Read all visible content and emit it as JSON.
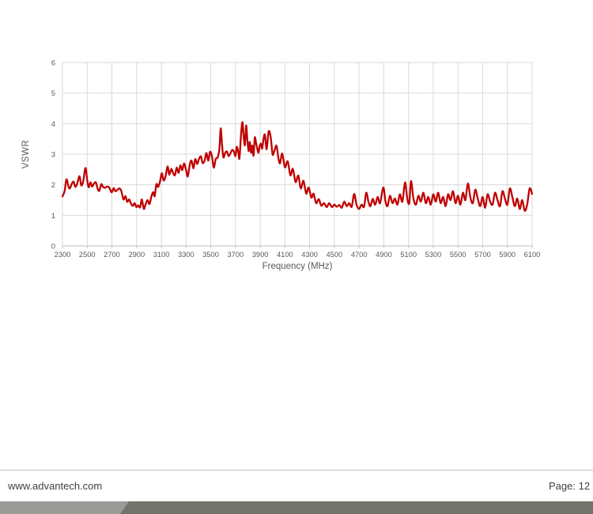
{
  "footer": {
    "website": "www.advantech.com",
    "page_label": "Page: 12"
  },
  "colors": {
    "gridline": "#d9d9d9",
    "axis_line": "#bfbfbf",
    "tick_label": "#595959",
    "bar_light": "#9b9b97",
    "bar_dark": "#73736d"
  },
  "chart_data": {
    "type": "line",
    "title": "",
    "xlabel": "Frequency (MHz)",
    "ylabel": "VSWR",
    "x_range": [
      2300,
      6100
    ],
    "y_range": [
      0,
      6
    ],
    "x_ticks": [
      2300,
      2500,
      2700,
      2900,
      3100,
      3300,
      3500,
      3700,
      3900,
      4100,
      4300,
      4500,
      4700,
      4900,
      5100,
      5300,
      5500,
      5700,
      5900,
      6100
    ],
    "y_ticks": [
      0,
      1,
      2,
      3,
      4,
      5,
      6
    ],
    "grid": true,
    "legend": "none",
    "line_color": "#c00000",
    "series": [
      {
        "name": "VSWR",
        "points": [
          [
            2300,
            1.62
          ],
          [
            2318,
            1.8
          ],
          [
            2332,
            2.18
          ],
          [
            2348,
            1.95
          ],
          [
            2360,
            1.88
          ],
          [
            2374,
            2.02
          ],
          [
            2390,
            2.1
          ],
          [
            2404,
            1.93
          ],
          [
            2420,
            2.05
          ],
          [
            2438,
            2.28
          ],
          [
            2452,
            1.98
          ],
          [
            2468,
            2.12
          ],
          [
            2486,
            2.55
          ],
          [
            2500,
            2.15
          ],
          [
            2512,
            1.92
          ],
          [
            2526,
            2.08
          ],
          [
            2540,
            1.94
          ],
          [
            2554,
            2.03
          ],
          [
            2570,
            2.08
          ],
          [
            2584,
            1.88
          ],
          [
            2598,
            1.8
          ],
          [
            2614,
            2.02
          ],
          [
            2628,
            1.93
          ],
          [
            2644,
            1.9
          ],
          [
            2660,
            1.94
          ],
          [
            2678,
            1.91
          ],
          [
            2698,
            1.75
          ],
          [
            2714,
            1.89
          ],
          [
            2728,
            1.79
          ],
          [
            2744,
            1.83
          ],
          [
            2760,
            1.88
          ],
          [
            2776,
            1.8
          ],
          [
            2794,
            1.52
          ],
          [
            2810,
            1.63
          ],
          [
            2824,
            1.44
          ],
          [
            2840,
            1.52
          ],
          [
            2856,
            1.37
          ],
          [
            2870,
            1.31
          ],
          [
            2884,
            1.4
          ],
          [
            2898,
            1.27
          ],
          [
            2912,
            1.33
          ],
          [
            2928,
            1.26
          ],
          [
            2942,
            1.52
          ],
          [
            2958,
            1.21
          ],
          [
            2972,
            1.35
          ],
          [
            2988,
            1.5
          ],
          [
            3004,
            1.37
          ],
          [
            3020,
            1.62
          ],
          [
            3034,
            1.76
          ],
          [
            3046,
            1.63
          ],
          [
            3060,
            2.02
          ],
          [
            3074,
            1.93
          ],
          [
            3090,
            2.12
          ],
          [
            3104,
            2.38
          ],
          [
            3118,
            2.14
          ],
          [
            3134,
            2.28
          ],
          [
            3150,
            2.6
          ],
          [
            3164,
            2.33
          ],
          [
            3180,
            2.52
          ],
          [
            3194,
            2.4
          ],
          [
            3210,
            2.31
          ],
          [
            3224,
            2.56
          ],
          [
            3240,
            2.39
          ],
          [
            3254,
            2.63
          ],
          [
            3270,
            2.48
          ],
          [
            3284,
            2.7
          ],
          [
            3300,
            2.49
          ],
          [
            3314,
            2.27
          ],
          [
            3330,
            2.66
          ],
          [
            3344,
            2.79
          ],
          [
            3360,
            2.54
          ],
          [
            3374,
            2.84
          ],
          [
            3390,
            2.68
          ],
          [
            3404,
            2.84
          ],
          [
            3420,
            2.93
          ],
          [
            3434,
            2.71
          ],
          [
            3450,
            2.79
          ],
          [
            3464,
            3.04
          ],
          [
            3480,
            2.79
          ],
          [
            3494,
            3.08
          ],
          [
            3510,
            2.93
          ],
          [
            3524,
            2.56
          ],
          [
            3540,
            2.84
          ],
          [
            3556,
            2.9
          ],
          [
            3570,
            3.18
          ],
          [
            3580,
            3.84
          ],
          [
            3590,
            3.38
          ],
          [
            3602,
            2.9
          ],
          [
            3616,
            3.04
          ],
          [
            3630,
            3.09
          ],
          [
            3644,
            2.94
          ],
          [
            3660,
            3.04
          ],
          [
            3674,
            3.14
          ],
          [
            3688,
            3.08
          ],
          [
            3700,
            2.94
          ],
          [
            3710,
            3.24
          ],
          [
            3722,
            3.08
          ],
          [
            3732,
            2.86
          ],
          [
            3744,
            3.58
          ],
          [
            3756,
            4.05
          ],
          [
            3766,
            3.58
          ],
          [
            3776,
            3.3
          ],
          [
            3786,
            3.94
          ],
          [
            3796,
            3.48
          ],
          [
            3806,
            3.1
          ],
          [
            3816,
            3.4
          ],
          [
            3826,
            3.05
          ],
          [
            3836,
            3.28
          ],
          [
            3846,
            2.95
          ],
          [
            3856,
            3.54
          ],
          [
            3866,
            3.38
          ],
          [
            3876,
            3.18
          ],
          [
            3886,
            3.05
          ],
          [
            3896,
            3.28
          ],
          [
            3906,
            3.34
          ],
          [
            3916,
            3.18
          ],
          [
            3926,
            3.48
          ],
          [
            3938,
            3.64
          ],
          [
            3952,
            3.16
          ],
          [
            3968,
            3.74
          ],
          [
            3984,
            3.58
          ],
          [
            4000,
            3.0
          ],
          [
            4014,
            3.1
          ],
          [
            4032,
            3.28
          ],
          [
            4046,
            2.9
          ],
          [
            4060,
            2.7
          ],
          [
            4078,
            3.02
          ],
          [
            4100,
            2.57
          ],
          [
            4122,
            2.77
          ],
          [
            4144,
            2.31
          ],
          [
            4164,
            2.52
          ],
          [
            4186,
            2.09
          ],
          [
            4208,
            2.3
          ],
          [
            4228,
            1.88
          ],
          [
            4250,
            2.13
          ],
          [
            4272,
            1.71
          ],
          [
            4292,
            1.91
          ],
          [
            4314,
            1.58
          ],
          [
            4332,
            1.71
          ],
          [
            4352,
            1.4
          ],
          [
            4374,
            1.53
          ],
          [
            4394,
            1.32
          ],
          [
            4416,
            1.4
          ],
          [
            4438,
            1.27
          ],
          [
            4458,
            1.4
          ],
          [
            4480,
            1.27
          ],
          [
            4500,
            1.35
          ],
          [
            4520,
            1.28
          ],
          [
            4540,
            1.34
          ],
          [
            4560,
            1.25
          ],
          [
            4580,
            1.45
          ],
          [
            4600,
            1.3
          ],
          [
            4620,
            1.4
          ],
          [
            4640,
            1.28
          ],
          [
            4660,
            1.7
          ],
          [
            4680,
            1.34
          ],
          [
            4700,
            1.21
          ],
          [
            4720,
            1.35
          ],
          [
            4740,
            1.28
          ],
          [
            4758,
            1.74
          ],
          [
            4776,
            1.44
          ],
          [
            4792,
            1.3
          ],
          [
            4810,
            1.54
          ],
          [
            4830,
            1.35
          ],
          [
            4850,
            1.6
          ],
          [
            4870,
            1.4
          ],
          [
            4896,
            1.91
          ],
          [
            4914,
            1.45
          ],
          [
            4930,
            1.3
          ],
          [
            4950,
            1.64
          ],
          [
            4970,
            1.4
          ],
          [
            4990,
            1.55
          ],
          [
            5010,
            1.35
          ],
          [
            5030,
            1.69
          ],
          [
            5050,
            1.45
          ],
          [
            5072,
            2.08
          ],
          [
            5090,
            1.55
          ],
          [
            5106,
            1.4
          ],
          [
            5120,
            2.12
          ],
          [
            5140,
            1.55
          ],
          [
            5160,
            1.35
          ],
          [
            5180,
            1.64
          ],
          [
            5200,
            1.45
          ],
          [
            5220,
            1.74
          ],
          [
            5240,
            1.4
          ],
          [
            5260,
            1.6
          ],
          [
            5280,
            1.35
          ],
          [
            5300,
            1.69
          ],
          [
            5320,
            1.45
          ],
          [
            5340,
            1.74
          ],
          [
            5360,
            1.4
          ],
          [
            5380,
            1.6
          ],
          [
            5400,
            1.3
          ],
          [
            5420,
            1.69
          ],
          [
            5440,
            1.5
          ],
          [
            5460,
            1.79
          ],
          [
            5480,
            1.4
          ],
          [
            5500,
            1.64
          ],
          [
            5520,
            1.35
          ],
          [
            5540,
            1.74
          ],
          [
            5560,
            1.5
          ],
          [
            5580,
            2.04
          ],
          [
            5600,
            1.6
          ],
          [
            5620,
            1.4
          ],
          [
            5640,
            1.84
          ],
          [
            5660,
            1.55
          ],
          [
            5680,
            1.3
          ],
          [
            5700,
            1.6
          ],
          [
            5720,
            1.25
          ],
          [
            5740,
            1.69
          ],
          [
            5760,
            1.45
          ],
          [
            5780,
            1.35
          ],
          [
            5800,
            1.74
          ],
          [
            5820,
            1.5
          ],
          [
            5840,
            1.3
          ],
          [
            5860,
            1.79
          ],
          [
            5880,
            1.55
          ],
          [
            5900,
            1.35
          ],
          [
            5920,
            1.88
          ],
          [
            5940,
            1.6
          ],
          [
            5960,
            1.3
          ],
          [
            5980,
            1.55
          ],
          [
            6000,
            1.21
          ],
          [
            6020,
            1.5
          ],
          [
            6040,
            1.15
          ],
          [
            6060,
            1.35
          ],
          [
            6080,
            1.88
          ],
          [
            6100,
            1.7
          ]
        ]
      }
    ]
  }
}
